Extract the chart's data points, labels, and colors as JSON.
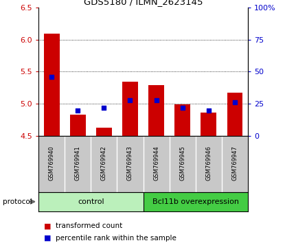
{
  "title": "GDS5180 / ILMN_2623145",
  "samples": [
    "GSM769940",
    "GSM769941",
    "GSM769942",
    "GSM769943",
    "GSM769944",
    "GSM769945",
    "GSM769946",
    "GSM769947"
  ],
  "transformed_counts": [
    6.09,
    4.83,
    4.63,
    5.35,
    5.29,
    4.99,
    4.86,
    5.17
  ],
  "percentile_ranks": [
    46,
    20,
    22,
    28,
    28,
    22,
    20,
    26
  ],
  "ylim_left": [
    4.5,
    6.5
  ],
  "ylim_right": [
    0,
    100
  ],
  "yticks_left": [
    4.5,
    5.0,
    5.5,
    6.0,
    6.5
  ],
  "yticks_right": [
    0,
    25,
    50,
    75,
    100
  ],
  "ytick_labels_right": [
    "0",
    "25",
    "50",
    "75",
    "100%"
  ],
  "bar_bottom": 4.5,
  "bar_color_red": "#cc0000",
  "bar_color_blue": "#0000cc",
  "bg_color": "#ffffff",
  "sample_area_color": "#c8c8c8",
  "control_color": "#bbf0bb",
  "overexpression_color": "#44cc44",
  "control_indices": [
    0,
    1,
    2,
    3
  ],
  "overexpression_indices": [
    4,
    5,
    6,
    7
  ],
  "control_label": "control",
  "overexpression_label": "Bcl11b overexpression",
  "protocol_label": "protocol",
  "legend_red_label": "transformed count",
  "legend_blue_label": "percentile rank within the sample",
  "bar_width": 0.6
}
